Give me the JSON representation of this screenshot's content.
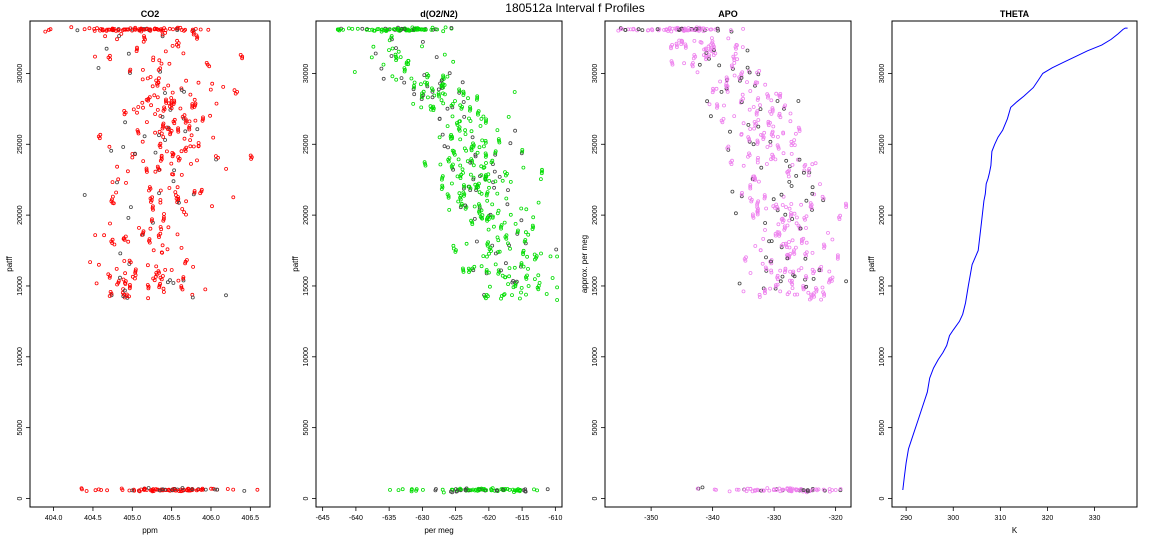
{
  "figure_title": "180512a   Interval f Profiles",
  "colors": {
    "co2": "#ff0000",
    "o2n2": "#00dd00",
    "apo": "#ee82ee",
    "theta": "#0000ff",
    "outline": "#000000"
  },
  "chart_data": [
    {
      "type": "scatter",
      "title": "CO2",
      "xlabel": "ppm",
      "ylabel": "patff",
      "xlim": [
        403.7,
        406.75
      ],
      "ylim": [
        -600,
        33700
      ],
      "xticks": [
        "404.0",
        "404.5",
        "405.0",
        "405.5",
        "406.0",
        "406.5"
      ],
      "xtick_values": [
        404.0,
        404.5,
        405.0,
        405.5,
        406.0,
        406.5
      ],
      "yticks": [
        "0",
        "5000",
        "10000",
        "15000",
        "20000",
        "25000",
        "30000"
      ],
      "ytick_values": [
        0,
        5000,
        10000,
        15000,
        20000,
        25000,
        30000
      ],
      "clusters": [
        {
          "y": 33100,
          "xmin": 403.8,
          "xmax": 406.0,
          "xcenter": 405.0,
          "n": 90,
          "yspread": 60
        },
        {
          "y": 600,
          "xmin": 404.3,
          "xmax": 406.6,
          "xcenter": 405.5,
          "n": 90,
          "yspread": 60
        }
      ],
      "profile": [
        [
          14000,
          405.1
        ],
        [
          15000,
          405.2
        ],
        [
          17000,
          405.2
        ],
        [
          19000,
          405.25
        ],
        [
          21000,
          405.3
        ],
        [
          23000,
          405.35
        ],
        [
          25000,
          405.45
        ],
        [
          27000,
          405.5
        ],
        [
          29000,
          405.5
        ],
        [
          31000,
          405.4
        ],
        [
          32500,
          405.3
        ]
      ],
      "xspread": 0.38,
      "ybody": [
        14000,
        32800
      ],
      "n_body": 260,
      "seed": 11
    },
    {
      "type": "scatter",
      "title": "d(O2/N2)",
      "xlabel": "per meg",
      "ylabel": "patff",
      "xlim": [
        -646,
        -609
      ],
      "ylim": [
        -600,
        33700
      ],
      "xticks": [
        "-645",
        "-640",
        "-635",
        "-630",
        "-625",
        "-620",
        "-615",
        "-610"
      ],
      "xtick_values": [
        -645,
        -640,
        -635,
        -630,
        -625,
        -620,
        -615,
        -610
      ],
      "yticks": [
        "0",
        "5000",
        "10000",
        "15000",
        "20000",
        "25000",
        "30000"
      ],
      "ytick_values": [
        0,
        5000,
        10000,
        15000,
        20000,
        25000,
        30000
      ],
      "clusters": [
        {
          "y": 33100,
          "xmin": -643.5,
          "xmax": -623.5,
          "xcenter": -633,
          "n": 90,
          "yspread": 60
        },
        {
          "y": 600,
          "xmin": -635,
          "xmax": -611,
          "xcenter": -622,
          "n": 90,
          "yspread": 60
        }
      ],
      "profile": [
        [
          14000,
          -615
        ],
        [
          16000,
          -616.5
        ],
        [
          18000,
          -617.5
        ],
        [
          20000,
          -619.5
        ],
        [
          22000,
          -621
        ],
        [
          24000,
          -622
        ],
        [
          26000,
          -623.5
        ],
        [
          28000,
          -626
        ],
        [
          30000,
          -630
        ],
        [
          31500,
          -634
        ],
        [
          32500,
          -637
        ]
      ],
      "xspread": 3.3,
      "ybody": [
        14000,
        32500
      ],
      "n_body": 300,
      "seed": 23
    },
    {
      "type": "scatter",
      "title": "APO",
      "xlabel": "",
      "ylabel": "approx. per meg",
      "xlim": [
        -357.5,
        -317.5
      ],
      "ylim": [
        -600,
        33700
      ],
      "xticks": [
        "-350",
        "-340",
        "-330",
        "-320"
      ],
      "xtick_values": [
        -350,
        -340,
        -330,
        -320
      ],
      "yticks": [
        "0",
        "5000",
        "10000",
        "15000",
        "20000",
        "25000",
        "30000"
      ],
      "ytick_values": [
        0,
        5000,
        10000,
        15000,
        20000,
        25000,
        30000
      ],
      "clusters": [
        {
          "y": 33100,
          "xmin": -356,
          "xmax": -334,
          "xcenter": -344,
          "n": 90,
          "yspread": 60
        },
        {
          "y": 600,
          "xmin": -343,
          "xmax": -319,
          "xcenter": -328,
          "n": 90,
          "yspread": 60
        }
      ],
      "profile": [
        [
          14000,
          -326
        ],
        [
          16000,
          -327
        ],
        [
          18000,
          -327.5
        ],
        [
          20000,
          -328
        ],
        [
          22000,
          -329
        ],
        [
          24000,
          -329.5
        ],
        [
          26000,
          -331
        ],
        [
          28000,
          -333
        ],
        [
          30000,
          -337
        ],
        [
          31500,
          -341
        ],
        [
          32500,
          -344
        ]
      ],
      "xspread": 3.8,
      "ybody": [
        14000,
        32500
      ],
      "n_body": 300,
      "seed": 37
    },
    {
      "type": "line",
      "title": "THETA",
      "xlabel": "K",
      "ylabel": "patff",
      "xlim": [
        287,
        339
      ],
      "ylim": [
        -600,
        33700
      ],
      "xticks": [
        "290",
        "300",
        "310",
        "320",
        "330"
      ],
      "xtick_values": [
        290,
        300,
        310,
        320,
        330
      ],
      "yticks": [
        "0",
        "5000",
        "10000",
        "15000",
        "20000",
        "25000",
        "30000"
      ],
      "ytick_values": [
        0,
        5000,
        10000,
        15000,
        20000,
        25000,
        30000
      ],
      "x": [
        289.3,
        289.6,
        290.0,
        290.5,
        291.5,
        292.5,
        293.5,
        294.5,
        295.0,
        295.8,
        296.8,
        297.8,
        298.6,
        299.2,
        300.0,
        301.3,
        302.0,
        302.6,
        303.2,
        304.0,
        305.3,
        306.0,
        306.5,
        306.8,
        307.0,
        307.4,
        307.7,
        308.0,
        308.2,
        308.8,
        309.5,
        310.5,
        311.5,
        312.2,
        313.5,
        315.0,
        317.0,
        318.0,
        319.0,
        321.0,
        323.5,
        326.0,
        328.5,
        331.5,
        333.5,
        335.0,
        336.0,
        336.5,
        337.0
      ],
      "y": [
        600,
        1500,
        2500,
        3500,
        4500,
        5500,
        6500,
        7500,
        8500,
        9200,
        9800,
        10300,
        10800,
        11500,
        11900,
        12500,
        13000,
        13800,
        15000,
        16500,
        17500,
        19500,
        21000,
        21500,
        22200,
        22600,
        23000,
        23500,
        24500,
        25000,
        25500,
        26000,
        26800,
        27600,
        28000,
        28400,
        29000,
        29500,
        30000,
        30400,
        30800,
        31200,
        31600,
        32000,
        32400,
        32800,
        33100,
        33200,
        33200
      ]
    }
  ]
}
